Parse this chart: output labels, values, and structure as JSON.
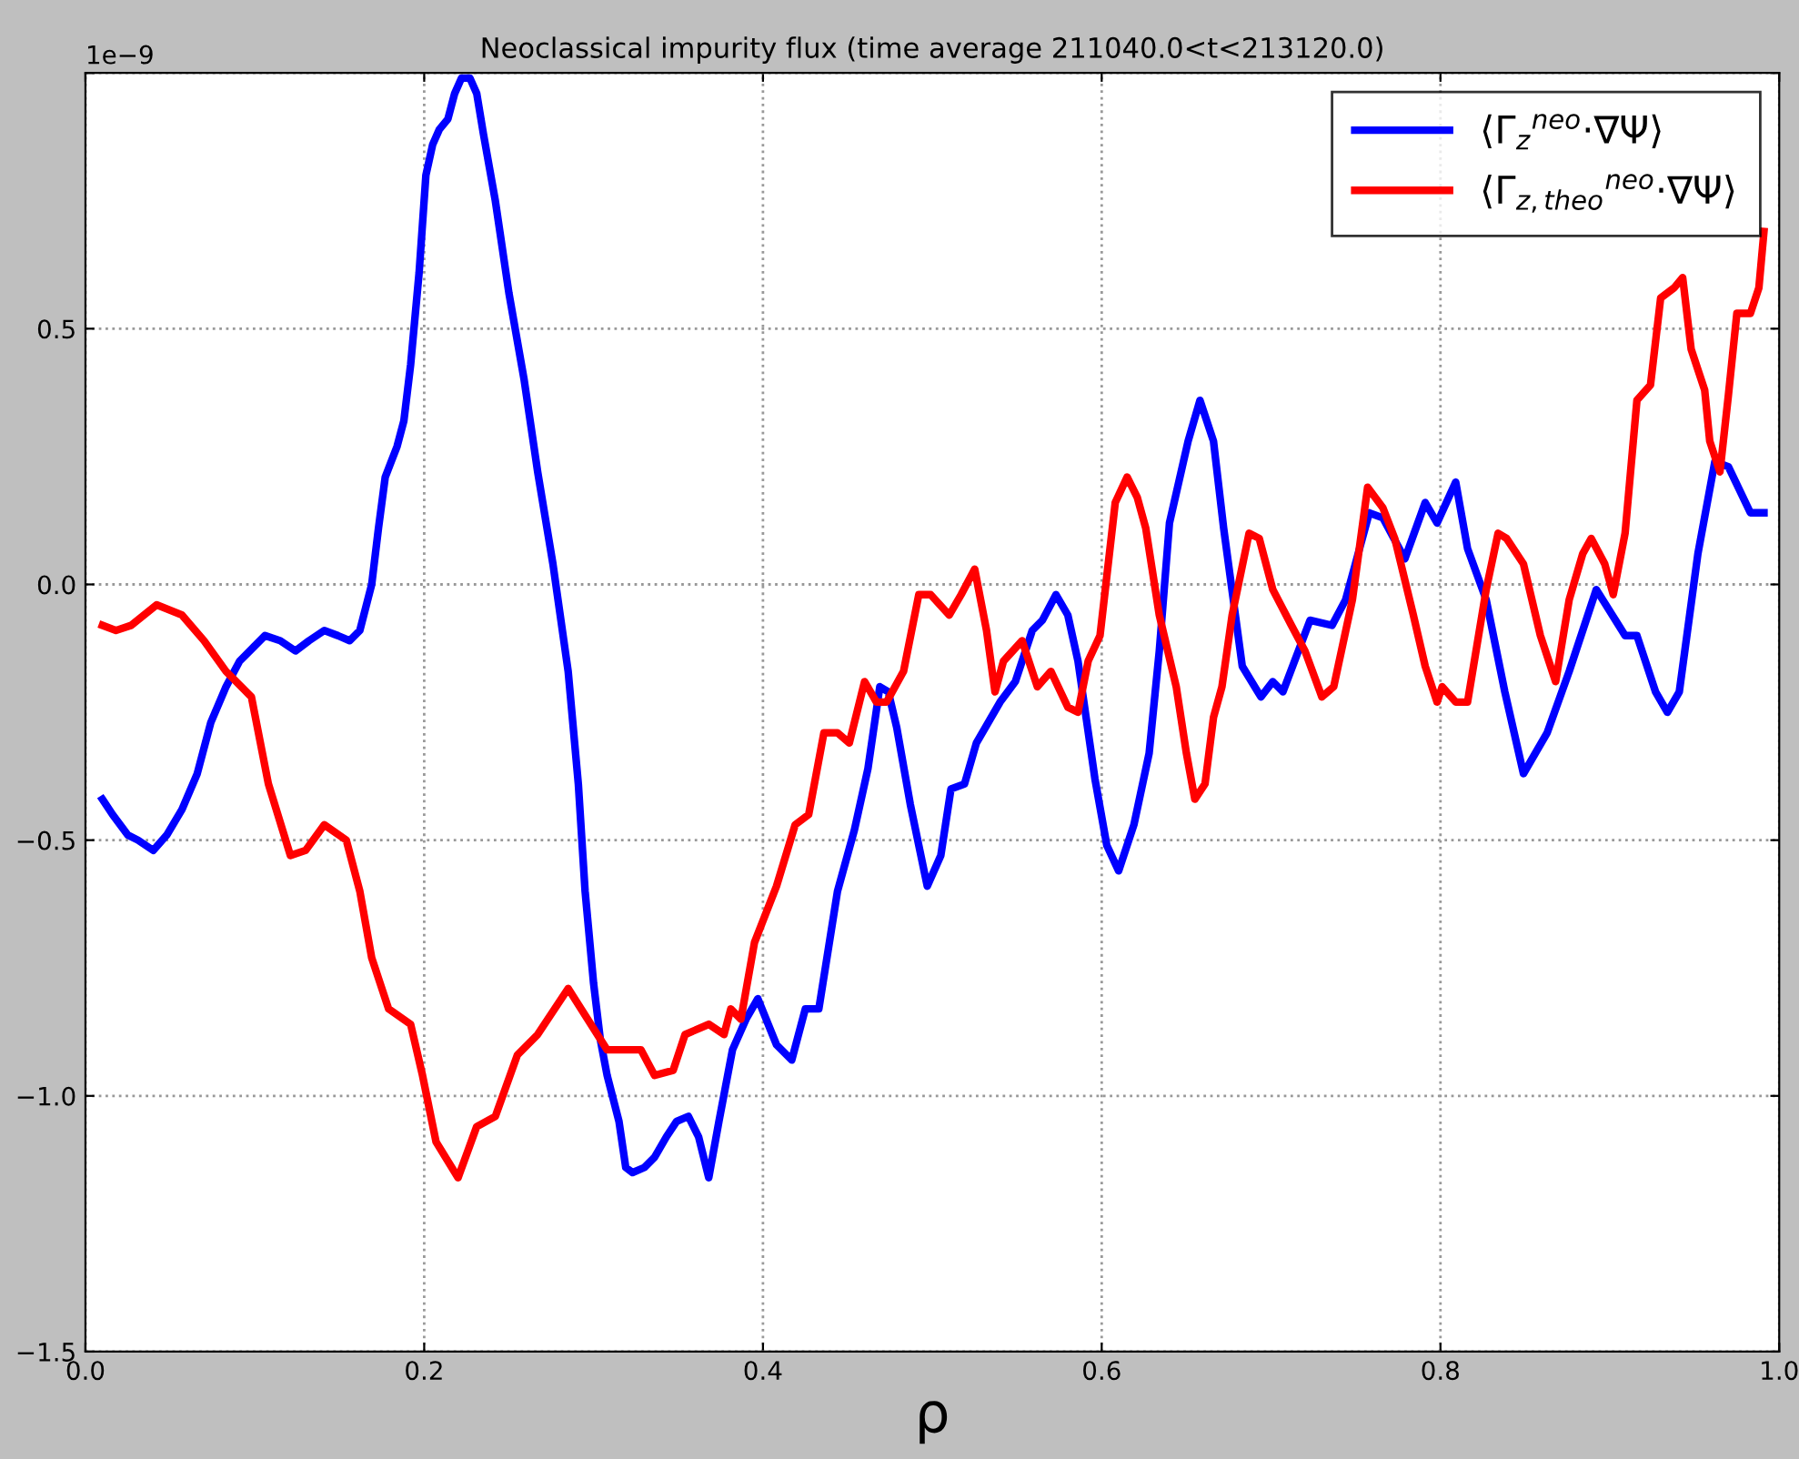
{
  "chart_data": {
    "type": "line",
    "title": "Neoclassical impurity flux (time average 211040.0<t<213120.0)",
    "xlabel": "ρ",
    "annotations": [
      "1e−9"
    ],
    "xlim": [
      0.0,
      1.0
    ],
    "ylim": [
      -1.5,
      1.0
    ],
    "xticks": [
      {
        "value": 0.0,
        "label": "0.0"
      },
      {
        "value": 0.2,
        "label": "0.2"
      },
      {
        "value": 0.4,
        "label": "0.4"
      },
      {
        "value": 0.6,
        "label": "0.6"
      },
      {
        "value": 0.8,
        "label": "0.8"
      },
      {
        "value": 1.0,
        "label": "1.0"
      }
    ],
    "yticks": [
      {
        "value": -1.5,
        "label": "−1.5"
      },
      {
        "value": -1.0,
        "label": "−1.0"
      },
      {
        "value": -0.5,
        "label": "−0.5"
      },
      {
        "value": 0.0,
        "label": "0.0"
      },
      {
        "value": 0.5,
        "label": "0.5"
      },
      {
        "value": 1.0,
        "label": null
      }
    ],
    "grid": true,
    "legend": "top right",
    "line_style": "solid",
    "marker": "none",
    "series": [
      {
        "name": "⟨Γ$_{z}$$^{neo}$·∇Ψ⟩",
        "color": "#0000ff",
        "x": [
          0.01,
          0.016,
          0.025,
          0.031,
          0.04,
          0.048,
          0.057,
          0.066,
          0.074,
          0.083,
          0.091,
          0.1,
          0.106,
          0.115,
          0.124,
          0.132,
          0.141,
          0.149,
          0.156,
          0.162,
          0.169,
          0.173,
          0.177,
          0.184,
          0.188,
          0.192,
          0.197,
          0.201,
          0.205,
          0.209,
          0.214,
          0.218,
          0.222,
          0.227,
          0.231,
          0.235,
          0.242,
          0.25,
          0.259,
          0.267,
          0.276,
          0.285,
          0.291,
          0.295,
          0.3,
          0.304,
          0.308,
          0.315,
          0.319,
          0.323,
          0.33,
          0.336,
          0.343,
          0.349,
          0.356,
          0.362,
          0.368,
          0.374,
          0.382,
          0.39,
          0.397,
          0.408,
          0.417,
          0.425,
          0.433,
          0.444,
          0.454,
          0.462,
          0.469,
          0.474,
          0.479,
          0.487,
          0.497,
          0.505,
          0.511,
          0.519,
          0.526,
          0.533,
          0.54,
          0.549,
          0.559,
          0.565,
          0.573,
          0.58,
          0.586,
          0.596,
          0.603,
          0.61,
          0.619,
          0.628,
          0.634,
          0.64,
          0.651,
          0.658,
          0.666,
          0.672,
          0.683,
          0.694,
          0.701,
          0.707,
          0.723,
          0.736,
          0.744,
          0.758,
          0.766,
          0.779,
          0.791,
          0.798,
          0.809,
          0.816,
          0.827,
          0.838,
          0.849,
          0.863,
          0.876,
          0.892,
          0.909,
          0.916,
          0.927,
          0.934,
          0.941,
          0.952,
          0.962,
          0.97,
          0.983,
          0.991
        ],
        "values": [
          -0.42,
          -0.45,
          -0.49,
          -0.5,
          -0.52,
          -0.49,
          -0.44,
          -0.37,
          -0.27,
          -0.2,
          -0.15,
          -0.12,
          -0.1,
          -0.11,
          -0.13,
          -0.11,
          -0.09,
          -0.1,
          -0.11,
          -0.09,
          0.0,
          0.11,
          0.21,
          0.27,
          0.32,
          0.43,
          0.61,
          0.8,
          0.86,
          0.89,
          0.91,
          0.96,
          0.99,
          0.99,
          0.96,
          0.88,
          0.75,
          0.57,
          0.4,
          0.22,
          0.04,
          -0.17,
          -0.39,
          -0.6,
          -0.78,
          -0.89,
          -0.96,
          -1.05,
          -1.14,
          -1.15,
          -1.14,
          -1.12,
          -1.08,
          -1.05,
          -1.04,
          -1.08,
          -1.16,
          -1.05,
          -0.91,
          -0.85,
          -0.81,
          -0.9,
          -0.93,
          -0.83,
          -0.83,
          -0.6,
          -0.48,
          -0.36,
          -0.2,
          -0.21,
          -0.28,
          -0.43,
          -0.59,
          -0.53,
          -0.4,
          -0.39,
          -0.31,
          -0.27,
          -0.23,
          -0.19,
          -0.09,
          -0.07,
          -0.02,
          -0.06,
          -0.15,
          -0.38,
          -0.51,
          -0.56,
          -0.47,
          -0.33,
          -0.13,
          0.12,
          0.28,
          0.36,
          0.28,
          0.11,
          -0.16,
          -0.22,
          -0.19,
          -0.21,
          -0.07,
          -0.08,
          -0.03,
          0.14,
          0.13,
          0.05,
          0.16,
          0.12,
          0.2,
          0.07,
          -0.03,
          -0.21,
          -0.37,
          -0.29,
          -0.17,
          -0.01,
          -0.1,
          -0.1,
          -0.21,
          -0.25,
          -0.21,
          0.06,
          0.24,
          0.23,
          0.14,
          0.14
        ]
      },
      {
        "name": "⟨Γ$_{z,theo}$$^{neo}$·∇Ψ⟩",
        "color": "#ff0000",
        "x": [
          0.01,
          0.018,
          0.027,
          0.042,
          0.057,
          0.07,
          0.083,
          0.098,
          0.108,
          0.121,
          0.13,
          0.141,
          0.154,
          0.162,
          0.169,
          0.179,
          0.192,
          0.199,
          0.207,
          0.22,
          0.231,
          0.242,
          0.255,
          0.267,
          0.285,
          0.308,
          0.328,
          0.336,
          0.347,
          0.354,
          0.368,
          0.377,
          0.381,
          0.387,
          0.395,
          0.408,
          0.419,
          0.427,
          0.436,
          0.444,
          0.451,
          0.46,
          0.467,
          0.473,
          0.483,
          0.492,
          0.499,
          0.51,
          0.517,
          0.525,
          0.532,
          0.537,
          0.542,
          0.553,
          0.562,
          0.57,
          0.58,
          0.586,
          0.592,
          0.599,
          0.608,
          0.615,
          0.621,
          0.626,
          0.634,
          0.644,
          0.65,
          0.655,
          0.661,
          0.666,
          0.671,
          0.677,
          0.687,
          0.693,
          0.701,
          0.712,
          0.72,
          0.73,
          0.737,
          0.748,
          0.757,
          0.766,
          0.773,
          0.784,
          0.791,
          0.798,
          0.801,
          0.809,
          0.816,
          0.827,
          0.834,
          0.839,
          0.849,
          0.859,
          0.868,
          0.876,
          0.884,
          0.889,
          0.897,
          0.902,
          0.909,
          0.916,
          0.924,
          0.93,
          0.938,
          0.943,
          0.948,
          0.956,
          0.959,
          0.965,
          0.97,
          0.975,
          0.983,
          0.988,
          0.991
        ],
        "values": [
          -0.08,
          -0.09,
          -0.08,
          -0.04,
          -0.06,
          -0.11,
          -0.17,
          -0.22,
          -0.39,
          -0.53,
          -0.52,
          -0.47,
          -0.5,
          -0.6,
          -0.73,
          -0.83,
          -0.86,
          -0.96,
          -1.09,
          -1.16,
          -1.06,
          -1.04,
          -0.92,
          -0.88,
          -0.79,
          -0.91,
          -0.91,
          -0.96,
          -0.95,
          -0.88,
          -0.86,
          -0.88,
          -0.83,
          -0.85,
          -0.7,
          -0.59,
          -0.47,
          -0.45,
          -0.29,
          -0.29,
          -0.31,
          -0.19,
          -0.23,
          -0.23,
          -0.17,
          -0.02,
          -0.02,
          -0.06,
          -0.02,
          0.03,
          -0.09,
          -0.21,
          -0.15,
          -0.11,
          -0.2,
          -0.17,
          -0.24,
          -0.25,
          -0.15,
          -0.1,
          0.16,
          0.21,
          0.17,
          0.11,
          -0.06,
          -0.2,
          -0.33,
          -0.42,
          -0.39,
          -0.26,
          -0.2,
          -0.06,
          0.1,
          0.09,
          -0.01,
          -0.08,
          -0.13,
          -0.22,
          -0.2,
          -0.03,
          0.19,
          0.15,
          0.09,
          -0.06,
          -0.16,
          -0.23,
          -0.2,
          -0.23,
          -0.23,
          -0.01,
          0.1,
          0.09,
          0.04,
          -0.1,
          -0.19,
          -0.03,
          0.06,
          0.09,
          0.04,
          -0.02,
          0.1,
          0.36,
          0.39,
          0.56,
          0.58,
          0.6,
          0.46,
          0.38,
          0.28,
          0.22,
          0.37,
          0.53,
          0.53,
          0.58,
          0.69
        ]
      }
    ]
  }
}
